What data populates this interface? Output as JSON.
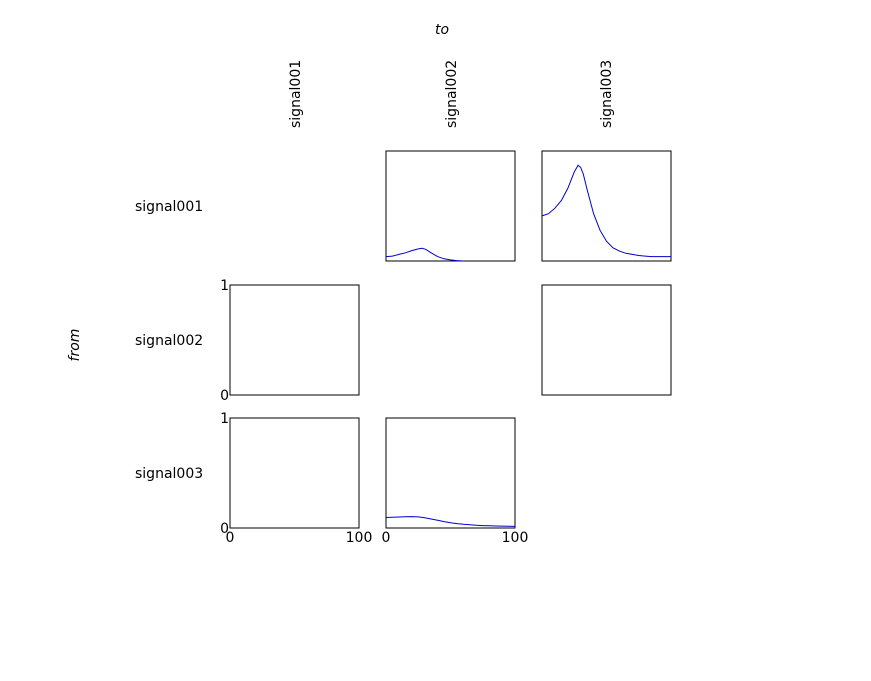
{
  "chart_data": {
    "type": "line",
    "title": "",
    "xlabel": "to",
    "ylabel": "from",
    "signals": [
      "signal001",
      "signal002",
      "signal003"
    ],
    "x_ticks": [
      "0",
      "100"
    ],
    "y_ticks": [
      "0",
      "1"
    ],
    "xlim": [
      0,
      100
    ],
    "ylim": [
      0,
      1
    ],
    "grid": false,
    "line_color": "#0000cc",
    "panels": [
      {
        "row": 0,
        "col": 1,
        "from": "signal001",
        "to": "signal002",
        "x": [
          0,
          5,
          10,
          15,
          20,
          25,
          28,
          31,
          35,
          40,
          45,
          50,
          55,
          60
        ],
        "y": [
          0.04,
          0.045,
          0.06,
          0.075,
          0.095,
          0.11,
          0.115,
          0.105,
          0.075,
          0.04,
          0.02,
          0.01,
          0.004,
          0.0
        ]
      },
      {
        "row": 0,
        "col": 2,
        "from": "signal001",
        "to": "signal003",
        "x": [
          0,
          5,
          10,
          15,
          20,
          25,
          28,
          30,
          32,
          35,
          40,
          45,
          50,
          55,
          60,
          65,
          70,
          75,
          80,
          85,
          90,
          95,
          100
        ],
        "y": [
          0.41,
          0.43,
          0.48,
          0.55,
          0.66,
          0.81,
          0.87,
          0.85,
          0.79,
          0.65,
          0.43,
          0.28,
          0.18,
          0.12,
          0.09,
          0.07,
          0.06,
          0.05,
          0.045,
          0.04,
          0.04,
          0.04,
          0.04
        ]
      },
      {
        "row": 1,
        "col": 0,
        "from": "signal002",
        "to": "signal001",
        "x": [],
        "y": []
      },
      {
        "row": 1,
        "col": 2,
        "from": "signal002",
        "to": "signal003",
        "x": [],
        "y": []
      },
      {
        "row": 2,
        "col": 0,
        "from": "signal003",
        "to": "signal001",
        "x": [],
        "y": []
      },
      {
        "row": 2,
        "col": 1,
        "from": "signal003",
        "to": "signal002",
        "x": [
          0,
          5,
          10,
          15,
          20,
          25,
          30,
          35,
          40,
          45,
          50,
          55,
          60,
          65,
          70,
          75,
          80,
          85,
          90,
          95,
          100
        ],
        "y": [
          0.095,
          0.097,
          0.1,
          0.103,
          0.104,
          0.101,
          0.093,
          0.082,
          0.07,
          0.058,
          0.048,
          0.04,
          0.034,
          0.029,
          0.025,
          0.022,
          0.02,
          0.018,
          0.017,
          0.016,
          0.015
        ]
      }
    ]
  }
}
